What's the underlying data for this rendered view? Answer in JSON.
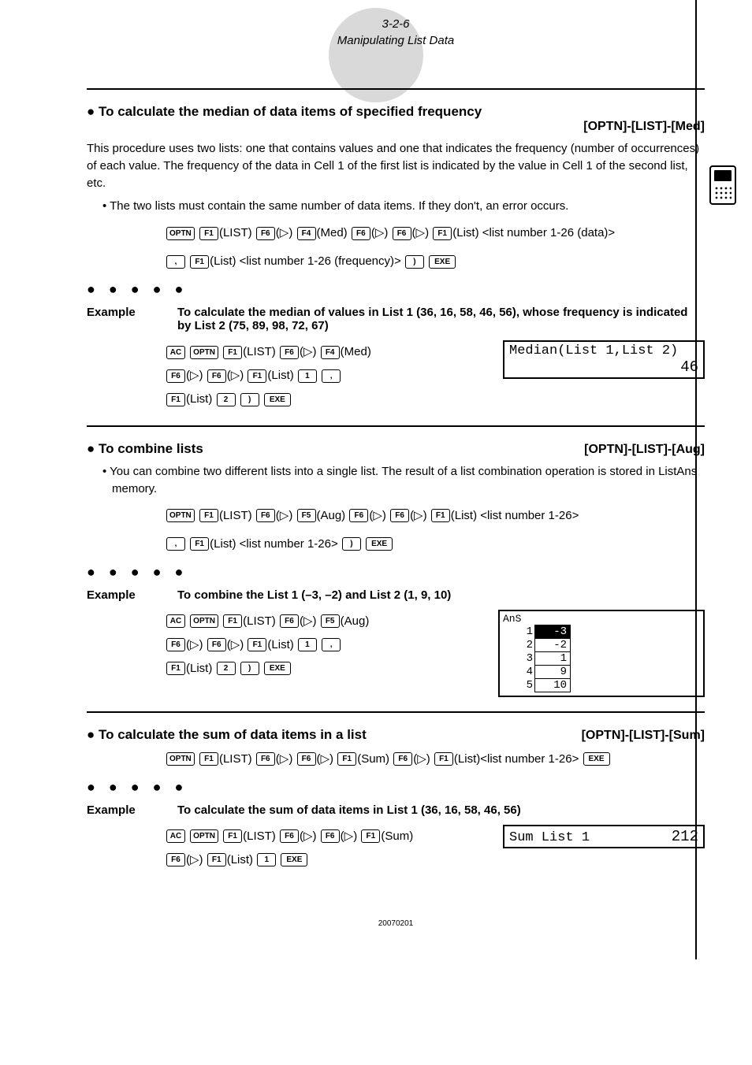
{
  "header": {
    "page_num": "3-2-6",
    "page_title": "Manipulating List Data"
  },
  "sec1": {
    "title": "To calculate the median of data items of specified frequency",
    "menu": "[OPTN]-[LIST]-[Med]",
    "para": "This procedure uses two lists: one that contains values and one that indicates the frequency (number of occurrences) of each value. The frequency of the data in Cell 1 of the first list is indicated by the value in Cell 1 of the second list, etc.",
    "bullet": "• The two lists must contain the same number of data items. If they don't, an error occurs.",
    "keyline1_tail": "(List) <list number 1-26 (data)>",
    "keyline2_tail": "(List) <list number 1-26 (frequency)>",
    "example_label": "Example",
    "example_text": "To calculate the median of values in List 1 (36, 16, 58, 46, 56), whose frequency is indicated by List 2 (75, 89, 98, 72, 67)",
    "result_expr": "Median(List 1,List 2)",
    "result_val": "46"
  },
  "sec2": {
    "title": "To combine lists",
    "menu": "[OPTN]-[LIST]-[Aug]",
    "bullet": "• You can combine two different lists into a single list.  The result of a list combination operation is stored in ListAns memory.",
    "keyline1_tail": "(List) <list number 1-26>",
    "keyline2_tail": "(List) <list number 1-26>",
    "example_label": "Example",
    "example_text": "To combine the List 1 (–3, –2) and List 2 (1, 9, 10)",
    "ans_hdr": "AnS",
    "ans_rows": [
      {
        "i": "1",
        "v": "-3",
        "sel": true
      },
      {
        "i": "2",
        "v": "-2"
      },
      {
        "i": "3",
        "v": "1"
      },
      {
        "i": "4",
        "v": "9"
      },
      {
        "i": "5",
        "v": "10"
      }
    ]
  },
  "sec3": {
    "title": "To calculate the sum of data items in a list",
    "menu": "[OPTN]-[LIST]-[Sum]",
    "keyline_tail": "(List)<list number 1-26>",
    "example_label": "Example",
    "example_text": "To calculate the sum of data items in List 1 (36, 16, 58, 46, 56)",
    "result_expr": "Sum List 1",
    "result_val": "212"
  },
  "footer": "20070201",
  "keys": {
    "OPTN": "OPTN",
    "F1": "F1",
    "F4": "F4",
    "F5": "F5",
    "F6": "F6",
    "AC": "AC",
    "EXE": "EXE",
    "LIST": "(LIST)",
    "tri": "(▷)",
    "Med": "(Med)",
    "Aug": "(Aug)",
    "Sum": "(Sum)",
    "List": "(List)",
    "comma": ",",
    "rparen": ")",
    "one": "1",
    "two": "2"
  }
}
